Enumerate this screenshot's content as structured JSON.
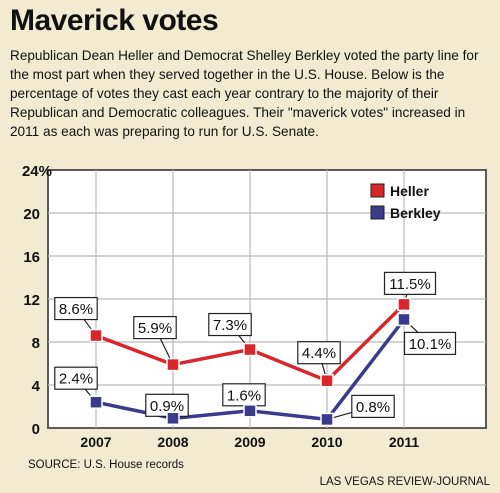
{
  "chart_data": {
    "type": "line",
    "title": "Maverick votes",
    "subtitle": "Republican Dean Heller and Democrat Shelley Berkley voted the party line for the most part when they served together in the U.S. House. Below is the percentage of votes they cast each year contrary to the majority of their Republican and Democratic colleagues. Their \"maverick votes\" increased in 2011 as each was preparing to run for U.S. Senate.",
    "categories": [
      "2007",
      "2008",
      "2009",
      "2010",
      "2011"
    ],
    "y_ticks": [
      "0",
      "4",
      "8",
      "12",
      "16",
      "20",
      "24%"
    ],
    "ylim": [
      0,
      24
    ],
    "grid": true,
    "legend_position": "top-right",
    "series": [
      {
        "name": "Heller",
        "color": "#d9262b",
        "values": [
          8.6,
          5.9,
          7.3,
          4.4,
          11.5
        ],
        "labels": [
          "8.6%",
          "5.9%",
          "7.3%",
          "4.4%",
          "11.5%"
        ]
      },
      {
        "name": "Berkley",
        "color": "#3b3a8c",
        "values": [
          2.4,
          0.9,
          1.6,
          0.8,
          10.1
        ],
        "labels": [
          "2.4%",
          "0.9%",
          "1.6%",
          "0.8%",
          "10.1%"
        ]
      }
    ],
    "source": "SOURCE: U.S. House records",
    "credit": "LAS VEGAS REVIEW-JOURNAL"
  }
}
